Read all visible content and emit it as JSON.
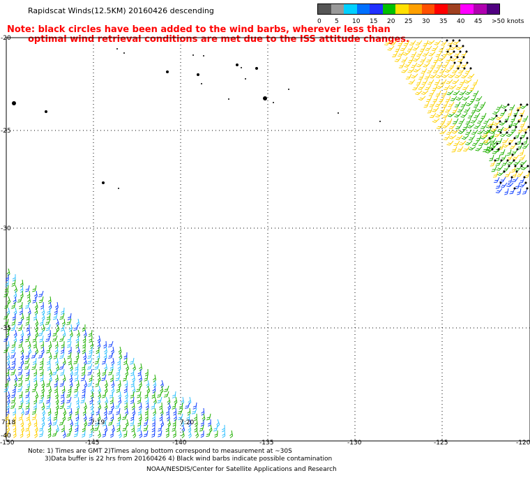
{
  "title": "Rapidscat Winds(12.5KM) 20160426 descending",
  "note": {
    "line1": "Note: black circles have been added to the wind barbs, wherever less than",
    "line2": "optimal wind retrieval conditions are met due to the ISS attitude changes."
  },
  "legend": {
    "colors": [
      "#555555",
      "#999999",
      "#00d0ff",
      "#0070ff",
      "#2030ff",
      "#00c000",
      "#ffe000",
      "#ffa000",
      "#ff5000",
      "#ff0000",
      "#a04020",
      "#ff00ff",
      "#b000b0",
      "#500080"
    ],
    "labels": [
      "0",
      "5",
      "10",
      "15",
      "20",
      "25",
      "30",
      "35",
      "40",
      "45",
      ">50 knots"
    ]
  },
  "map": {
    "lat_labels": [
      "-20",
      "-25",
      "-30",
      "-35",
      "-40"
    ],
    "lon_labels": [
      "-150",
      "-145",
      "-140",
      "-135",
      "-130",
      "-125",
      "-120"
    ],
    "time_labels": [
      "7:18",
      "7:19",
      "7:20"
    ]
  },
  "footer": {
    "line1": "Note: 1) Times are GMT 2)Times along bottom correspond to measurement at ~30S",
    "line2": "3)Data buffer is 22 hrs from 20160426 4) Black wind barbs indicate possible contamination",
    "line3": "NOAA/NESDIS/Center for Satellite Applications and Research"
  }
}
